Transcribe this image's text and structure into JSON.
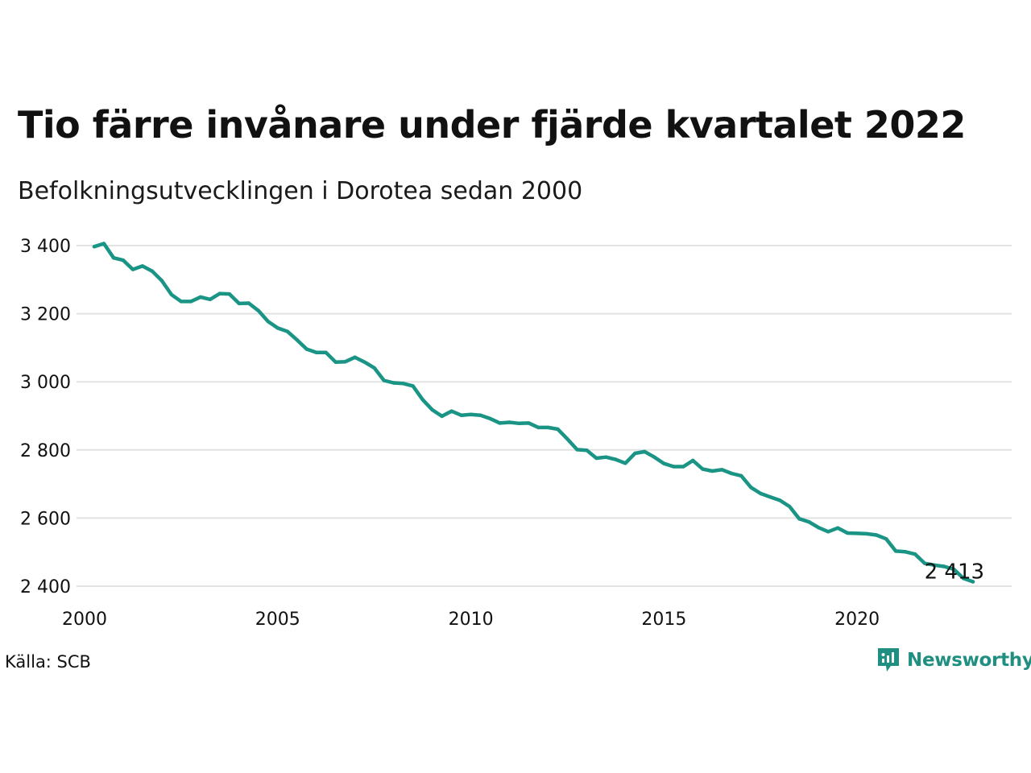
{
  "title": "Tio färre invånare under fjärde kvartalet 2022",
  "subtitle": "Befolkningsutvecklingen i Dorotea sedan 2000",
  "source": "Källa: SCB",
  "brand": "Newsworthy",
  "colors": {
    "line": "#1a9485",
    "grid": "#e2e2e2",
    "brand": "#1f8f82"
  },
  "icons": {
    "brand": "newsworthy-logo-icon"
  },
  "chart_data": {
    "type": "line",
    "title": "Tio färre invånare under fjärde kvartalet 2022",
    "subtitle": "Befolkningsutvecklingen i Dorotea sedan 2000",
    "xlim": [
      2000,
      2024
    ],
    "ylim": [
      2395,
      3420
    ],
    "x_ticks": [
      2000,
      2005,
      2010,
      2015,
      2020
    ],
    "x_tick_labels": [
      "2000",
      "2005",
      "2010",
      "2015",
      "2020"
    ],
    "y_ticks": [
      2400,
      2600,
      2800,
      3000,
      3200,
      3400
    ],
    "y_tick_labels": [
      "2 400",
      "2 600",
      "2 800",
      "3 000",
      "3 200",
      "3 400"
    ],
    "grid": "horizontal",
    "end_label": "2 413",
    "series": [
      {
        "x": [
          2000.25,
          2000.5,
          2000.75,
          2001.0,
          2001.25,
          2001.5,
          2001.75,
          2002.0,
          2002.25,
          2002.5,
          2002.75,
          2003.0,
          2003.25,
          2003.5,
          2003.75,
          2004.0,
          2004.25,
          2004.5,
          2004.75,
          2005.0,
          2005.25,
          2005.5,
          2005.75,
          2006.0,
          2006.25,
          2006.5,
          2006.75,
          2007.0,
          2007.25,
          2007.5,
          2007.75,
          2008.0,
          2008.25,
          2008.5,
          2008.75,
          2009.0,
          2009.25,
          2009.5,
          2009.75,
          2010.0,
          2010.25,
          2010.5,
          2010.75,
          2011.0,
          2011.25,
          2011.5,
          2011.75,
          2012.0,
          2012.25,
          2012.5,
          2012.75,
          2013.0,
          2013.25,
          2013.5,
          2013.75,
          2014.0,
          2014.25,
          2014.5,
          2014.75,
          2015.0,
          2015.25,
          2015.5,
          2015.75,
          2016.0,
          2016.25,
          2016.5,
          2016.75,
          2017.0,
          2017.25,
          2017.5,
          2017.75,
          2018.0,
          2018.25,
          2018.5,
          2018.75,
          2019.0,
          2019.25,
          2019.5,
          2019.75,
          2020.0,
          2020.25,
          2020.5,
          2020.75,
          2021.0,
          2021.25,
          2021.5,
          2021.75,
          2022.0,
          2022.25,
          2022.5,
          2022.75,
          2023.0
        ],
        "values": [
          3397,
          3406,
          3364,
          3357,
          3330,
          3340,
          3325,
          3297,
          3256,
          3236,
          3236,
          3249,
          3242,
          3259,
          3258,
          3230,
          3231,
          3209,
          3177,
          3158,
          3148,
          3123,
          3096,
          3086,
          3086,
          3058,
          3059,
          3072,
          3058,
          3041,
          3004,
          2997,
          2995,
          2988,
          2948,
          2918,
          2899,
          2914,
          2902,
          2904,
          2902,
          2892,
          2879,
          2881,
          2878,
          2879,
          2866,
          2866,
          2861,
          2832,
          2801,
          2799,
          2776,
          2779,
          2772,
          2761,
          2790,
          2795,
          2779,
          2760,
          2751,
          2751,
          2769,
          2744,
          2738,
          2742,
          2731,
          2724,
          2690,
          2672,
          2662,
          2652,
          2634,
          2598,
          2589,
          2572,
          2560,
          2571,
          2556,
          2555,
          2554,
          2550,
          2539,
          2503,
          2501,
          2494,
          2467,
          2462,
          2458,
          2450,
          2423,
          2413
        ]
      }
    ]
  }
}
